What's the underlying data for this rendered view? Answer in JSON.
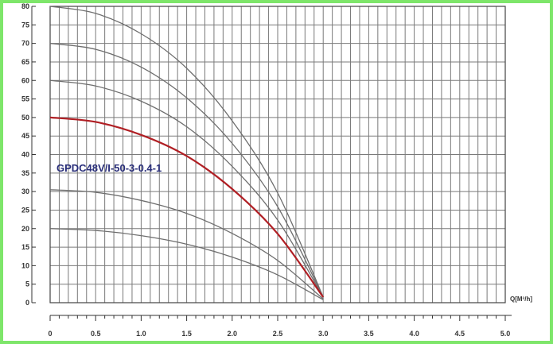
{
  "chart_data": {
    "type": "line",
    "title": "",
    "xlabel": "Q[M³/h]",
    "ylabel": "",
    "annotation": "GPDC48V/I-50-3-0.4-1",
    "xlim": [
      0,
      5
    ],
    "ylim": [
      0,
      80
    ],
    "x_ticks": [
      "0",
      "0.5",
      "1.0",
      "1.5",
      "2.0",
      "2.5",
      "3.0",
      "3.5",
      "4.0",
      "4.5",
      "5.0"
    ],
    "y_ticks": [
      "0",
      "5",
      "10",
      "15",
      "20",
      "25",
      "30",
      "35",
      "40",
      "45",
      "50",
      "55",
      "60",
      "65",
      "70",
      "75",
      "80"
    ],
    "grid": true,
    "highlight_color": "#b01f24",
    "curve_color": "#6e6e6e",
    "series": [
      {
        "highlight": false,
        "x": [
          0,
          0.5,
          1.0,
          1.5,
          2.0,
          2.5,
          3.0
        ],
        "y": [
          80,
          78.1,
          72.6,
          63.3,
          49.1,
          29.6,
          1.5
        ]
      },
      {
        "highlight": false,
        "x": [
          0,
          0.5,
          1.0,
          1.5,
          2.0,
          2.5,
          3.0
        ],
        "y": [
          70,
          68.4,
          63.6,
          55.3,
          43.0,
          25.9,
          1.5
        ]
      },
      {
        "highlight": false,
        "x": [
          0,
          0.5,
          1.0,
          1.5,
          2.0,
          2.5,
          3.0
        ],
        "y": [
          60,
          58.5,
          54.4,
          47.5,
          36.8,
          22.3,
          1.5
        ]
      },
      {
        "highlight": true,
        "x": [
          0,
          0.5,
          1.0,
          1.5,
          2.0,
          2.5,
          3.0
        ],
        "y": [
          50,
          48.8,
          45.3,
          39.6,
          30.7,
          18.6,
          1.5
        ]
      },
      {
        "highlight": false,
        "x": [
          0,
          0.5,
          1.0,
          1.5,
          2.0,
          2.5,
          3.0
        ],
        "y": [
          30.5,
          29.8,
          27.6,
          24.1,
          18.7,
          11.4,
          1.0
        ]
      },
      {
        "highlight": false,
        "x": [
          0,
          0.5,
          1.0,
          1.5,
          2.0,
          2.5,
          3.0
        ],
        "y": [
          20,
          19.5,
          18.1,
          15.8,
          12.3,
          7.5,
          0.8
        ]
      }
    ]
  }
}
